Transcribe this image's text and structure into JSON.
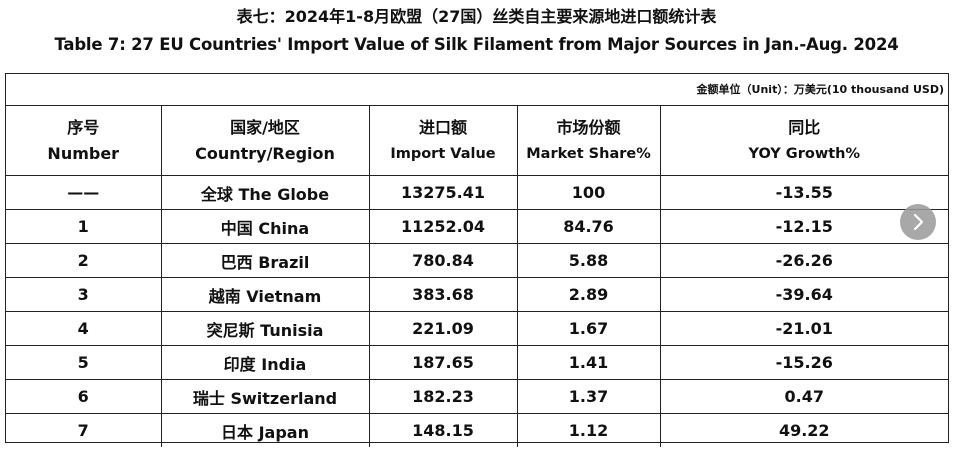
{
  "title_zh": "表七：2024年1-8月欧盟（27国）丝类自主要来源地进口额统计表",
  "title_en": "Table 7: 27 EU Countries' Import Value of Silk Filament from Major Sources in Jan.-Aug. 2024",
  "unit_note": "金额单位（Unit）：万美元(10 thousand USD)",
  "headers": [
    {
      "zh": "序号",
      "en": "Number"
    },
    {
      "zh": "国家/地区",
      "en": "Country/Region"
    },
    {
      "zh": "进口额",
      "en": "Import Value"
    },
    {
      "zh": "市场份额",
      "en": "Market Share%"
    },
    {
      "zh": "同比",
      "en": "YOY Growth%"
    }
  ],
  "rows": [
    {
      "number": "——",
      "country": "全球 The Globe",
      "import_value": "13275.41",
      "market_share": "100",
      "yoy": "-13.55"
    },
    {
      "number": "1",
      "country": "中国 China",
      "import_value": "11252.04",
      "market_share": "84.76",
      "yoy": "-12.15"
    },
    {
      "number": "2",
      "country": "巴西 Brazil",
      "import_value": "780.84",
      "market_share": "5.88",
      "yoy": "-26.26"
    },
    {
      "number": "3",
      "country": "越南 Vietnam",
      "import_value": "383.68",
      "market_share": "2.89",
      "yoy": "-39.64"
    },
    {
      "number": "4",
      "country": "突尼斯 Tunisia",
      "import_value": "221.09",
      "market_share": "1.67",
      "yoy": "-21.01"
    },
    {
      "number": "5",
      "country": "印度 India",
      "import_value": "187.65",
      "market_share": "1.41",
      "yoy": "-15.26"
    },
    {
      "number": "6",
      "country": "瑞士 Switzerland",
      "import_value": "182.23",
      "market_share": "1.37",
      "yoy": "0.47"
    },
    {
      "number": "7",
      "country": "日本 Japan",
      "import_value": "148.15",
      "market_share": "1.12",
      "yoy": "49.22"
    }
  ],
  "next_button_icon": "chevron-right-icon"
}
